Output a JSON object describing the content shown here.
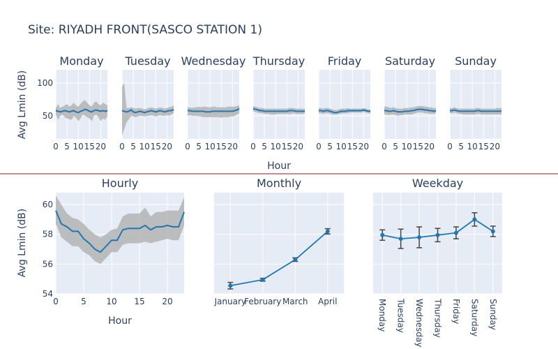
{
  "title": "Site: RIYADH FRONT(SASCO STATION 1)",
  "colors": {
    "line": "#1f77b4",
    "band": "#b4b4b4",
    "plot_bg": "#e5ecf6",
    "grid": "#ffffff",
    "text": "#2a3f5f",
    "divider": "#8b1a1a"
  },
  "chart_data": [
    {
      "id": "daily",
      "type": "line",
      "facet_titles": [
        "Monday",
        "Tuesday",
        "Wednesday",
        "Thursday",
        "Friday",
        "Saturday",
        "Sunday"
      ],
      "ylabel": "Avg Lmin (dB)",
      "xlabel": "Hour",
      "ylim": [
        15,
        120
      ],
      "yticks": [
        50,
        100
      ],
      "xlim": [
        0,
        23
      ],
      "xticks": [
        0,
        5,
        10,
        15,
        20
      ],
      "x": [
        0,
        1,
        2,
        3,
        4,
        5,
        6,
        7,
        8,
        9,
        10,
        11,
        12,
        13,
        14,
        15,
        16,
        17,
        18,
        19,
        20,
        21,
        22,
        23
      ],
      "series": [
        {
          "mean": [
            58,
            57,
            56,
            57,
            58,
            57,
            56,
            57,
            58,
            56,
            55,
            57,
            58,
            60,
            59,
            57,
            56,
            58,
            59,
            58,
            57,
            58,
            57,
            58
          ],
          "lower": [
            52,
            44,
            50,
            52,
            48,
            46,
            45,
            44,
            50,
            47,
            42,
            46,
            52,
            50,
            48,
            46,
            42,
            50,
            52,
            48,
            42,
            46,
            44,
            50
          ],
          "upper": [
            62,
            68,
            62,
            64,
            66,
            68,
            64,
            66,
            70,
            66,
            64,
            68,
            72,
            74,
            70,
            66,
            64,
            70,
            72,
            68,
            66,
            70,
            68,
            66
          ]
        },
        {
          "mean": [
            58,
            57,
            56,
            57,
            59,
            56,
            55,
            56,
            57,
            56,
            55,
            56,
            57,
            58,
            57,
            56,
            57,
            58,
            57,
            56,
            57,
            58,
            58,
            60
          ],
          "lower": [
            20,
            30,
            40,
            45,
            50,
            49,
            48,
            49,
            50,
            50,
            49,
            50,
            50,
            51,
            50,
            49,
            50,
            51,
            50,
            50,
            51,
            50,
            52,
            54
          ],
          "upper": [
            95,
            100,
            62,
            62,
            63,
            62,
            61,
            62,
            62,
            61,
            60,
            61,
            62,
            63,
            62,
            61,
            62,
            63,
            62,
            61,
            62,
            63,
            64,
            66
          ]
        },
        {
          "mean": [
            58,
            58,
            57,
            57,
            57,
            57,
            57,
            57,
            56,
            56,
            56,
            57,
            57,
            57,
            57,
            57,
            57,
            57,
            57,
            57,
            57,
            58,
            59,
            61
          ],
          "lower": [
            50,
            51,
            50,
            50,
            50,
            49,
            49,
            48,
            48,
            48,
            48,
            48,
            48,
            48,
            48,
            47,
            48,
            48,
            48,
            49,
            49,
            50,
            52,
            54
          ],
          "upper": [
            63,
            63,
            62,
            63,
            63,
            64,
            63,
            64,
            64,
            63,
            63,
            64,
            64,
            63,
            63,
            63,
            63,
            63,
            64,
            64,
            64,
            64,
            65,
            66
          ]
        },
        {
          "mean": [
            61,
            60,
            59,
            58,
            58,
            57,
            57,
            57,
            57,
            57,
            57,
            57,
            57,
            57,
            57,
            57,
            58,
            58,
            58,
            57,
            57,
            57,
            57,
            57
          ],
          "lower": [
            57,
            56,
            55,
            54,
            54,
            53,
            53,
            53,
            52,
            52,
            52,
            53,
            53,
            53,
            53,
            53,
            53,
            53,
            54,
            53,
            53,
            53,
            53,
            54
          ],
          "upper": [
            65,
            64,
            63,
            62,
            62,
            61,
            61,
            61,
            61,
            61,
            61,
            61,
            61,
            61,
            61,
            61,
            62,
            62,
            62,
            61,
            61,
            61,
            61,
            61
          ]
        },
        {
          "mean": [
            58,
            58,
            57,
            58,
            58,
            57,
            56,
            55,
            55,
            56,
            57,
            57,
            57,
            58,
            58,
            58,
            58,
            58,
            58,
            58,
            59,
            58,
            57,
            57
          ],
          "lower": [
            54,
            54,
            53,
            54,
            54,
            53,
            52,
            52,
            52,
            53,
            53,
            54,
            54,
            54,
            55,
            55,
            55,
            55,
            55,
            55,
            56,
            55,
            54,
            54
          ],
          "upper": [
            62,
            62,
            61,
            62,
            62,
            61,
            60,
            59,
            59,
            60,
            61,
            61,
            61,
            62,
            61,
            61,
            61,
            61,
            61,
            61,
            62,
            61,
            60,
            60
          ]
        },
        {
          "mean": [
            58,
            58,
            57,
            57,
            58,
            57,
            56,
            56,
            56,
            57,
            57,
            57,
            58,
            58,
            59,
            60,
            60,
            60,
            59,
            59,
            58,
            58,
            57,
            58
          ],
          "lower": [
            52,
            52,
            51,
            52,
            52,
            51,
            50,
            51,
            51,
            52,
            52,
            52,
            52,
            53,
            54,
            55,
            55,
            55,
            54,
            54,
            53,
            53,
            53,
            54
          ],
          "upper": [
            64,
            64,
            63,
            62,
            63,
            62,
            61,
            61,
            61,
            62,
            62,
            62,
            63,
            63,
            64,
            65,
            65,
            65,
            64,
            64,
            63,
            63,
            62,
            62
          ]
        },
        {
          "mean": [
            58,
            58,
            59,
            58,
            57,
            57,
            57,
            57,
            57,
            57,
            57,
            57,
            58,
            58,
            57,
            57,
            57,
            57,
            57,
            57,
            57,
            57,
            57,
            57
          ],
          "lower": [
            54,
            54,
            55,
            54,
            53,
            53,
            52,
            52,
            52,
            52,
            52,
            52,
            53,
            53,
            52,
            52,
            52,
            52,
            52,
            52,
            52,
            52,
            52,
            52
          ],
          "upper": [
            62,
            62,
            63,
            62,
            61,
            61,
            61,
            61,
            61,
            61,
            61,
            61,
            62,
            62,
            61,
            61,
            61,
            61,
            61,
            61,
            61,
            62,
            62,
            62
          ]
        }
      ]
    },
    {
      "id": "hourly",
      "type": "line",
      "title": "Hourly",
      "ylabel": "Avg Lmin (dB)",
      "xlabel": "Hour",
      "ylim": [
        54,
        60.8
      ],
      "yticks": [
        54,
        56,
        58,
        60
      ],
      "xlim": [
        0,
        23
      ],
      "xticks": [
        0,
        5,
        10,
        15,
        20
      ],
      "x": [
        0,
        1,
        2,
        3,
        4,
        5,
        6,
        7,
        8,
        9,
        10,
        11,
        12,
        13,
        14,
        15,
        16,
        17,
        18,
        19,
        20,
        21,
        22,
        23
      ],
      "mean": [
        59.6,
        58.7,
        58.5,
        58.2,
        58.2,
        57.7,
        57.4,
        57.0,
        56.8,
        57.2,
        57.6,
        57.6,
        58.3,
        58.4,
        58.4,
        58.4,
        58.6,
        58.3,
        58.5,
        58.5,
        58.6,
        58.5,
        58.5,
        59.5
      ],
      "lower": [
        58.7,
        57.8,
        57.5,
        57.2,
        57.2,
        56.8,
        56.6,
        56.2,
        56.0,
        56.4,
        56.8,
        56.8,
        57.3,
        57.4,
        57.4,
        57.4,
        57.5,
        57.4,
        57.5,
        57.6,
        57.7,
        57.6,
        57.6,
        58.6
      ],
      "upper": [
        60.6,
        60.0,
        59.4,
        59.1,
        59.0,
        58.7,
        58.3,
        58.0,
        57.8,
        58.0,
        58.3,
        58.4,
        59.2,
        59.4,
        59.4,
        59.4,
        59.8,
        59.2,
        59.5,
        59.5,
        59.6,
        59.6,
        59.6,
        60.5
      ]
    },
    {
      "id": "monthly",
      "type": "line",
      "title": "Monthly",
      "categories": [
        "January",
        "February",
        "March",
        "April"
      ],
      "values": [
        54.55,
        54.95,
        56.3,
        58.2
      ],
      "errors": [
        0.22,
        0.1,
        0.12,
        0.18
      ],
      "ylim": [
        54,
        60.8
      ]
    },
    {
      "id": "weekday",
      "type": "line",
      "title": "Weekday",
      "categories": [
        "Monday",
        "Tuesday",
        "Wednesday",
        "Thursday",
        "Friday",
        "Saturday",
        "Sunday"
      ],
      "values": [
        57.95,
        57.7,
        57.8,
        57.95,
        58.1,
        59.0,
        58.2
      ],
      "errors": [
        0.35,
        0.65,
        0.7,
        0.45,
        0.4,
        0.45,
        0.35
      ],
      "ylim": [
        54,
        60.8
      ]
    }
  ]
}
